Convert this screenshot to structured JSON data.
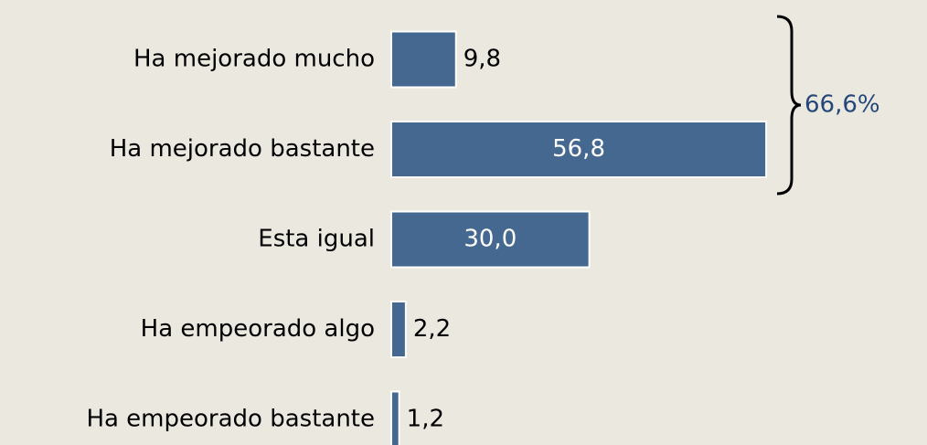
{
  "chart_data": {
    "type": "bar",
    "orientation": "horizontal",
    "categories": [
      "Ha mejorado mucho",
      "Ha mejorado bastante",
      "Esta igual",
      "Ha empeorado algo",
      "Ha empeorado bastante"
    ],
    "values": [
      9.8,
      56.8,
      30.0,
      2.2,
      1.2
    ],
    "value_labels": [
      "9,8",
      "56,8",
      "30,0",
      "2,2",
      "1,2"
    ],
    "color": "#44688f",
    "annotation": "66,6%",
    "annotation_color": "#24477a"
  }
}
